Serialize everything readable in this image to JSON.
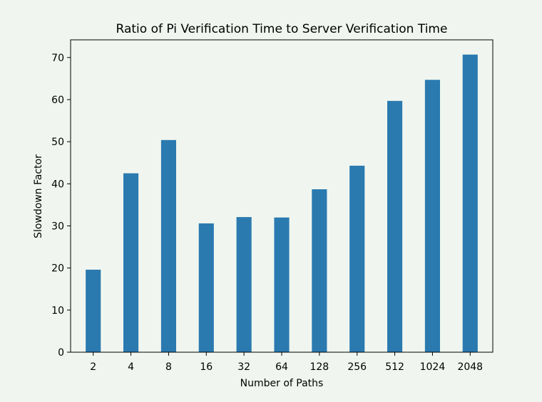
{
  "chart_data": {
    "type": "bar",
    "title": "Ratio of Pi Verification Time to Server Verification Time",
    "xlabel": "Number of Paths",
    "ylabel": "Slowdown Factor",
    "categories": [
      "2",
      "4",
      "8",
      "16",
      "32",
      "64",
      "128",
      "256",
      "512",
      "1024",
      "2048"
    ],
    "values": [
      19.6,
      42.5,
      50.4,
      30.6,
      32.1,
      32.0,
      38.7,
      44.3,
      59.7,
      64.7,
      70.7
    ],
    "ylim": [
      0,
      74.2
    ],
    "yticks": [
      0,
      10,
      20,
      30,
      40,
      50,
      60,
      70
    ],
    "grid": false,
    "legend": "none",
    "colors": {
      "bar": "#2a7ab0",
      "axes": "#000000",
      "background": "#f0f6ef"
    }
  }
}
